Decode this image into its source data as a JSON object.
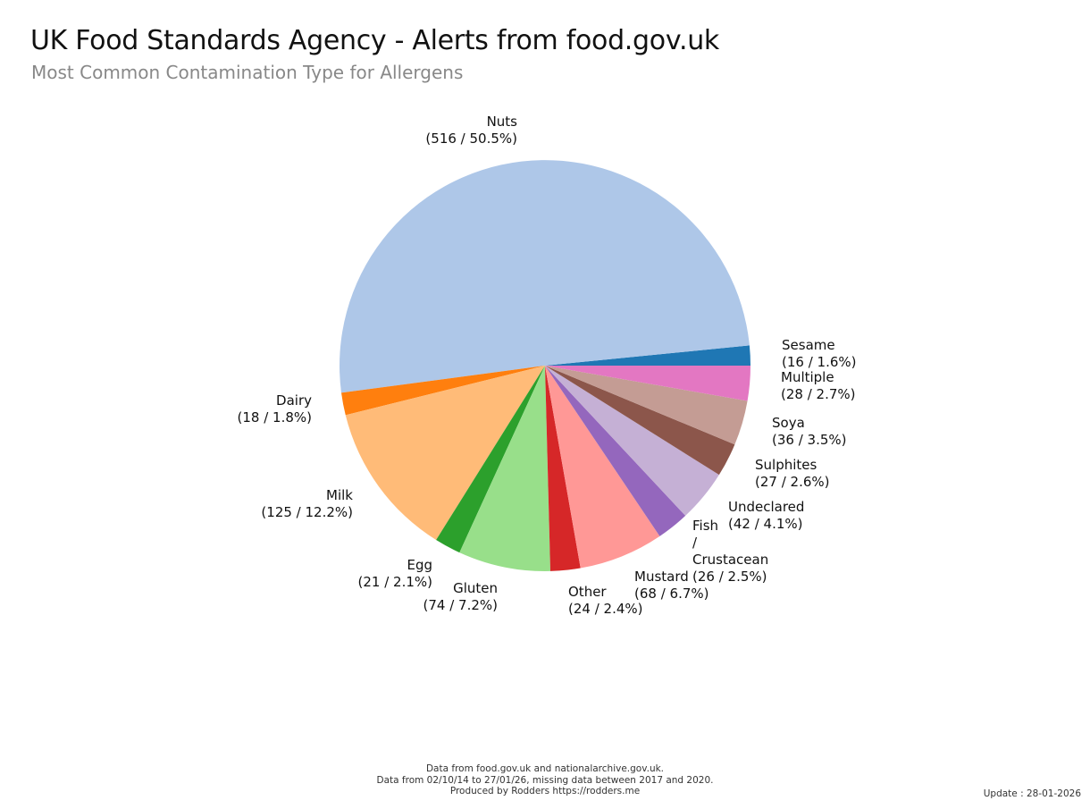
{
  "title": "UK Food Standards Agency - Alerts from food.gov.uk",
  "subtitle": "Most Common Contamination Type for Allergens",
  "chart_data": {
    "type": "pie",
    "title": "UK Food Standards Agency - Alerts from food.gov.uk",
    "subtitle": "Most Common Contamination Type for Allergens",
    "slices": [
      {
        "label": "Sesame",
        "value": 16,
        "percent": "1.6%",
        "display": "(16 / 1.6%)",
        "color": "#1f77b4"
      },
      {
        "label": "Nuts",
        "value": 516,
        "percent": "50.5%",
        "display": "(516 / 50.5%)",
        "color": "#aec7e8"
      },
      {
        "label": "Dairy",
        "value": 18,
        "percent": "1.8%",
        "display": "(18 / 1.8%)",
        "color": "#ff7f0e"
      },
      {
        "label": "Milk",
        "value": 125,
        "percent": "12.2%",
        "display": "(125 / 12.2%)",
        "color": "#ffbb78"
      },
      {
        "label": "Egg",
        "value": 21,
        "percent": "2.1%",
        "display": "(21 / 2.1%)",
        "color": "#2ca02c"
      },
      {
        "label": "Gluten",
        "value": 74,
        "percent": "7.2%",
        "display": "(74 / 7.2%)",
        "color": "#98df8a"
      },
      {
        "label": "Other",
        "value": 24,
        "percent": "2.4%",
        "display": "(24 / 2.4%)",
        "color": "#d62728"
      },
      {
        "label": "Mustard",
        "value": 68,
        "percent": "6.7%",
        "display": "(68 / 6.7%)",
        "color": "#ff9896"
      },
      {
        "label": "Fish / Crustacean",
        "value": 26,
        "percent": "2.5%",
        "display": "(26 / 2.5%)",
        "color": "#9467bd"
      },
      {
        "label": "Undeclared",
        "value": 42,
        "percent": "4.1%",
        "display": "(42 / 4.1%)",
        "color": "#c5b0d5"
      },
      {
        "label": "Sulphites",
        "value": 27,
        "percent": "2.6%",
        "display": "(27 / 2.6%)",
        "color": "#8c564b"
      },
      {
        "label": "Soya",
        "value": 36,
        "percent": "3.5%",
        "display": "(36 / 3.5%)",
        "color": "#c49c94"
      },
      {
        "label": "Multiple",
        "value": 28,
        "percent": "2.7%",
        "display": "(28 / 2.7%)",
        "color": "#e377c2"
      }
    ]
  },
  "footer": {
    "line1": "Data from food.gov.uk and nationalarchive.gov.uk.",
    "line2": "Data from 02/10/14 to 27/01/26, missing data between 2017 and 2020.",
    "line3": "Produced by Rodders https://rodders.me"
  },
  "update": "Update : 28-01-2026"
}
